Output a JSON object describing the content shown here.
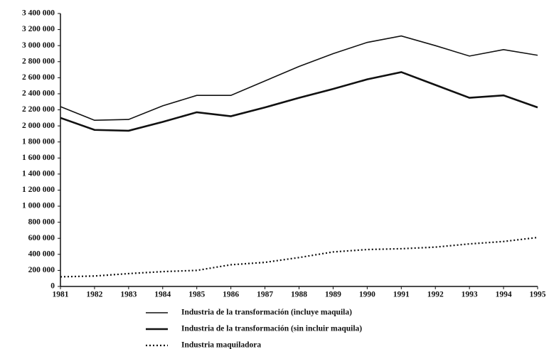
{
  "chart_data": {
    "type": "line",
    "categories": [
      "1981",
      "1982",
      "1983",
      "1984",
      "1985",
      "1986",
      "1987",
      "1988",
      "1989",
      "1990",
      "1991",
      "1992",
      "1993",
      "1994",
      "1995"
    ],
    "series": [
      {
        "name": "Industria de la transformación (incluye maquila)",
        "color": "#111111",
        "dash": "solid",
        "linewidth": 1.6,
        "values": [
          2240000,
          2070000,
          2080000,
          2250000,
          2380000,
          2380000,
          2560000,
          2740000,
          2900000,
          3040000,
          3120000,
          3000000,
          2870000,
          2950000,
          2880000
        ]
      },
      {
        "name": "Industria de la transformación (sin incluir maquila)",
        "color": "#111111",
        "dash": "solid",
        "linewidth": 2.6,
        "values": [
          2100000,
          1950000,
          1940000,
          2050000,
          2170000,
          2120000,
          2230000,
          2350000,
          2460000,
          2580000,
          2670000,
          2510000,
          2350000,
          2380000,
          2230000
        ]
      },
      {
        "name": "Industria maquiladora",
        "color": "#111111",
        "dash": "dotted",
        "linewidth": 2.2,
        "values": [
          120000,
          130000,
          160000,
          185000,
          200000,
          270000,
          300000,
          360000,
          430000,
          460000,
          470000,
          490000,
          530000,
          560000,
          610000
        ]
      }
    ],
    "ylim": [
      0,
      3400000
    ],
    "yticks": [
      0,
      {
        "value": 200000,
        "label": "200 000"
      },
      {
        "value": 400000,
        "label": "400 000"
      },
      {
        "value": 600000,
        "label": "600 000"
      },
      {
        "value": 800000,
        "label": "800 000"
      },
      {
        "value": 1000000,
        "label": "1 000 000"
      },
      {
        "value": 1200000,
        "label": "1 200 000"
      },
      {
        "value": 1400000,
        "label": "1 400 000"
      },
      {
        "value": 1600000,
        "label": "1 600 000"
      },
      {
        "value": 1800000,
        "label": "1 800 000"
      },
      {
        "value": 2000000,
        "label": "2 000 000"
      },
      {
        "value": 2200000,
        "label": "2 200 000"
      },
      {
        "value": 2400000,
        "label": "2 400 000"
      },
      {
        "value": 2600000,
        "label": "2 600 000"
      },
      {
        "value": 2800000,
        "label": "2 800 000"
      },
      {
        "value": 3000000,
        "label": "3 000 000"
      },
      {
        "value": 3200000,
        "label": "3 200 000"
      },
      {
        "value": 3400000,
        "label": "3 400 000"
      }
    ],
    "grid": false,
    "legend": "bottom"
  }
}
